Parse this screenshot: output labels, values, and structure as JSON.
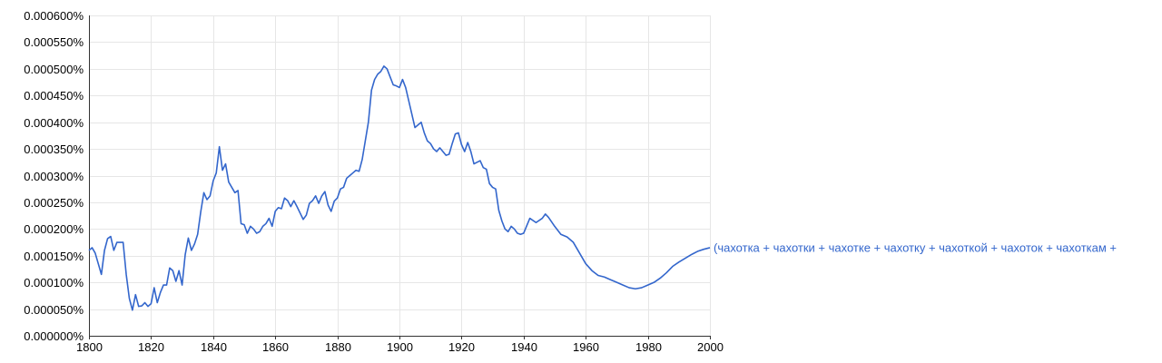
{
  "chart_data": {
    "type": "line",
    "title": "",
    "xlabel": "",
    "ylabel": "",
    "xlim": [
      1800,
      2000
    ],
    "ylim": [
      0,
      0.0006
    ],
    "grid": true,
    "legend": "series label at right end of line",
    "colors": {
      "series": "#3366cc",
      "grid": "#e6e6e6",
      "axis": "#333333"
    },
    "x_ticks": [
      1800,
      1820,
      1840,
      1860,
      1880,
      1900,
      1920,
      1940,
      1960,
      1980,
      2000
    ],
    "x_tick_labels": [
      "1800",
      "1820",
      "1840",
      "1860",
      "1880",
      "1900",
      "1920",
      "1940",
      "1960",
      "1980",
      "2000"
    ],
    "y_ticks": [
      0,
      5e-05,
      0.0001,
      0.00015,
      0.0002,
      0.00025,
      0.0003,
      0.00035,
      0.0004,
      0.00045,
      0.0005,
      0.00055,
      0.0006
    ],
    "y_tick_labels": [
      "0.000000%",
      "0.000050%",
      "0.000100%",
      "0.000150%",
      "0.000200%",
      "0.000250%",
      "0.000300%",
      "0.000350%",
      "0.000400%",
      "0.000450%",
      "0.000500%",
      "0.000550%",
      "0.000600%"
    ],
    "series": [
      {
        "name": "(чахотка + чахотки + чахотке + чахотку + чахоткой + чахоток + чахоткам +",
        "x": [
          1800,
          1801,
          1802,
          1803,
          1804,
          1805,
          1806,
          1807,
          1808,
          1809,
          1810,
          1811,
          1812,
          1813,
          1814,
          1815,
          1816,
          1817,
          1818,
          1819,
          1820,
          1821,
          1822,
          1823,
          1824,
          1825,
          1826,
          1827,
          1828,
          1829,
          1830,
          1831,
          1832,
          1833,
          1834,
          1835,
          1836,
          1837,
          1838,
          1839,
          1840,
          1841,
          1842,
          1843,
          1844,
          1845,
          1846,
          1847,
          1848,
          1849,
          1850,
          1851,
          1852,
          1853,
          1854,
          1855,
          1856,
          1857,
          1858,
          1859,
          1860,
          1861,
          1862,
          1863,
          1864,
          1865,
          1866,
          1867,
          1868,
          1869,
          1870,
          1871,
          1872,
          1873,
          1874,
          1875,
          1876,
          1877,
          1878,
          1879,
          1880,
          1881,
          1882,
          1883,
          1884,
          1885,
          1886,
          1887,
          1888,
          1889,
          1890,
          1891,
          1892,
          1893,
          1894,
          1895,
          1896,
          1897,
          1898,
          1899,
          1900,
          1901,
          1902,
          1903,
          1904,
          1905,
          1906,
          1907,
          1908,
          1909,
          1910,
          1911,
          1912,
          1913,
          1914,
          1915,
          1916,
          1917,
          1918,
          1919,
          1920,
          1921,
          1922,
          1923,
          1924,
          1925,
          1926,
          1927,
          1928,
          1929,
          1930,
          1931,
          1932,
          1933,
          1934,
          1935,
          1936,
          1937,
          1938,
          1939,
          1940,
          1942,
          1944,
          1946,
          1947,
          1948,
          1950,
          1952,
          1954,
          1956,
          1958,
          1960,
          1962,
          1964,
          1966,
          1968,
          1970,
          1972,
          1974,
          1976,
          1978,
          1980,
          1982,
          1984,
          1986,
          1988,
          1990,
          1992,
          1994,
          1996,
          1998,
          2000
        ],
        "values": [
          0.00016,
          0.000165,
          0.000155,
          0.000135,
          0.000115,
          0.00016,
          0.000182,
          0.000186,
          0.00016,
          0.000175,
          0.000175,
          0.000175,
          0.000115,
          7e-05,
          4.8e-05,
          7.7e-05,
          5.5e-05,
          5.6e-05,
          6.2e-05,
          5.5e-05,
          6e-05,
          9e-05,
          6.2e-05,
          8.1e-05,
          9.5e-05,
          9.5e-05,
          0.000127,
          0.000122,
          0.000102,
          0.000122,
          9.5e-05,
          0.000152,
          0.000183,
          0.00016,
          0.000172,
          0.00019,
          0.000232,
          0.000268,
          0.000255,
          0.000262,
          0.00029,
          0.000305,
          0.000354,
          0.00031,
          0.000322,
          0.000288,
          0.000278,
          0.000268,
          0.000272,
          0.00021,
          0.000208,
          0.000192,
          0.000205,
          0.0002,
          0.000192,
          0.000195,
          0.000205,
          0.00021,
          0.00022,
          0.000205,
          0.000233,
          0.00024,
          0.000238,
          0.000258,
          0.000253,
          0.000242,
          0.000253,
          0.000242,
          0.00023,
          0.000218,
          0.000226,
          0.000248,
          0.000253,
          0.000262,
          0.000248,
          0.000262,
          0.00027,
          0.000245,
          0.000233,
          0.000252,
          0.000258,
          0.000275,
          0.000278,
          0.000295,
          0.0003,
          0.000305,
          0.00031,
          0.000308,
          0.00033,
          0.000365,
          0.0004,
          0.00046,
          0.00048,
          0.00049,
          0.000495,
          0.000505,
          0.0005,
          0.000485,
          0.00047,
          0.000468,
          0.000465,
          0.00048,
          0.000465,
          0.00044,
          0.000415,
          0.00039,
          0.000395,
          0.0004,
          0.00038,
          0.000365,
          0.00036,
          0.00035,
          0.000345,
          0.000352,
          0.000345,
          0.000338,
          0.00034,
          0.00036,
          0.000378,
          0.00038,
          0.000358,
          0.000345,
          0.000362,
          0.000345,
          0.000322,
          0.000325,
          0.000328,
          0.000315,
          0.000312,
          0.000285,
          0.000278,
          0.000275,
          0.000235,
          0.000215,
          0.0002,
          0.000195,
          0.000205,
          0.0002,
          0.000192,
          0.00019,
          0.000192,
          0.00022,
          0.000212,
          0.00022,
          0.000228,
          0.000222,
          0.000205,
          0.00019,
          0.000185,
          0.000175,
          0.000155,
          0.000135,
          0.000122,
          0.000113,
          0.00011,
          0.000105,
          0.0001,
          9.5e-05,
          9e-05,
          8.8e-05,
          9e-05,
          9.5e-05,
          0.0001,
          0.000108,
          0.000118,
          0.00013,
          0.000138,
          0.000145,
          0.000152,
          0.000158,
          0.000162,
          0.000165
        ]
      }
    ]
  }
}
